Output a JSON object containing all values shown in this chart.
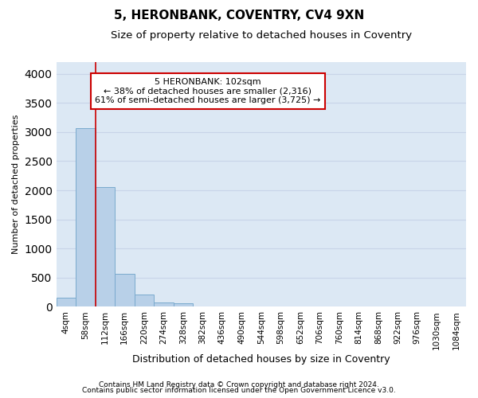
{
  "title": "5, HERONBANK, COVENTRY, CV4 9XN",
  "subtitle": "Size of property relative to detached houses in Coventry",
  "xlabel": "Distribution of detached houses by size in Coventry",
  "ylabel": "Number of detached properties",
  "footnote1": "Contains HM Land Registry data © Crown copyright and database right 2024.",
  "footnote2": "Contains public sector information licensed under the Open Government Licence v3.0.",
  "bar_labels": [
    "4sqm",
    "58sqm",
    "112sqm",
    "166sqm",
    "220sqm",
    "274sqm",
    "328sqm",
    "382sqm",
    "436sqm",
    "490sqm",
    "544sqm",
    "598sqm",
    "652sqm",
    "706sqm",
    "760sqm",
    "814sqm",
    "868sqm",
    "922sqm",
    "976sqm",
    "1030sqm",
    "1084sqm"
  ],
  "bar_values": [
    150,
    3060,
    2060,
    560,
    210,
    80,
    55,
    0,
    0,
    0,
    0,
    0,
    0,
    0,
    0,
    0,
    0,
    0,
    0,
    0,
    0
  ],
  "bar_color": "#b8d0e8",
  "bar_edge_color": "#7aaace",
  "annotation_text": "5 HERONBANK: 102sqm\n← 38% of detached houses are smaller (2,316)\n61% of semi-detached houses are larger (3,725) →",
  "annotation_box_color": "#ffffff",
  "annotation_box_edge": "#cc0000",
  "vline_color": "#cc0000",
  "vline_x": 2.0,
  "ylim": [
    0,
    4200
  ],
  "yticks": [
    0,
    500,
    1000,
    1500,
    2000,
    2500,
    3000,
    3500,
    4000
  ],
  "grid_color": "#c8d4e8",
  "background_color": "#dce8f4",
  "title_fontsize": 11,
  "subtitle_fontsize": 9.5,
  "xlabel_fontsize": 9,
  "ylabel_fontsize": 8,
  "tick_fontsize": 7.5,
  "annotation_fontsize": 8,
  "footnote_fontsize": 6.5
}
